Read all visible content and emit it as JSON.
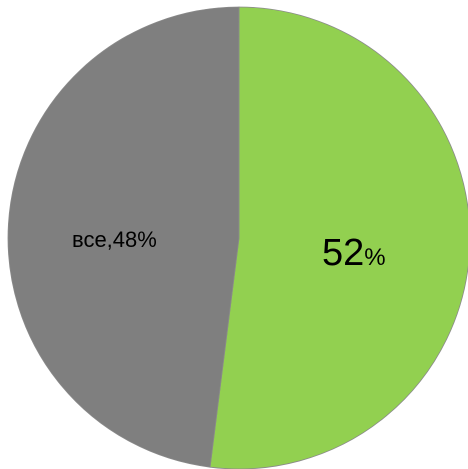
{
  "chart_data": {
    "type": "pie",
    "title": "",
    "slices": [
      {
        "label": "",
        "value": 52,
        "display_value": "52",
        "display_unit": "%",
        "color": "#92d050"
      },
      {
        "label": "все",
        "value": 48,
        "display_value": "все,48%",
        "color": "#7f7f7f"
      }
    ]
  }
}
